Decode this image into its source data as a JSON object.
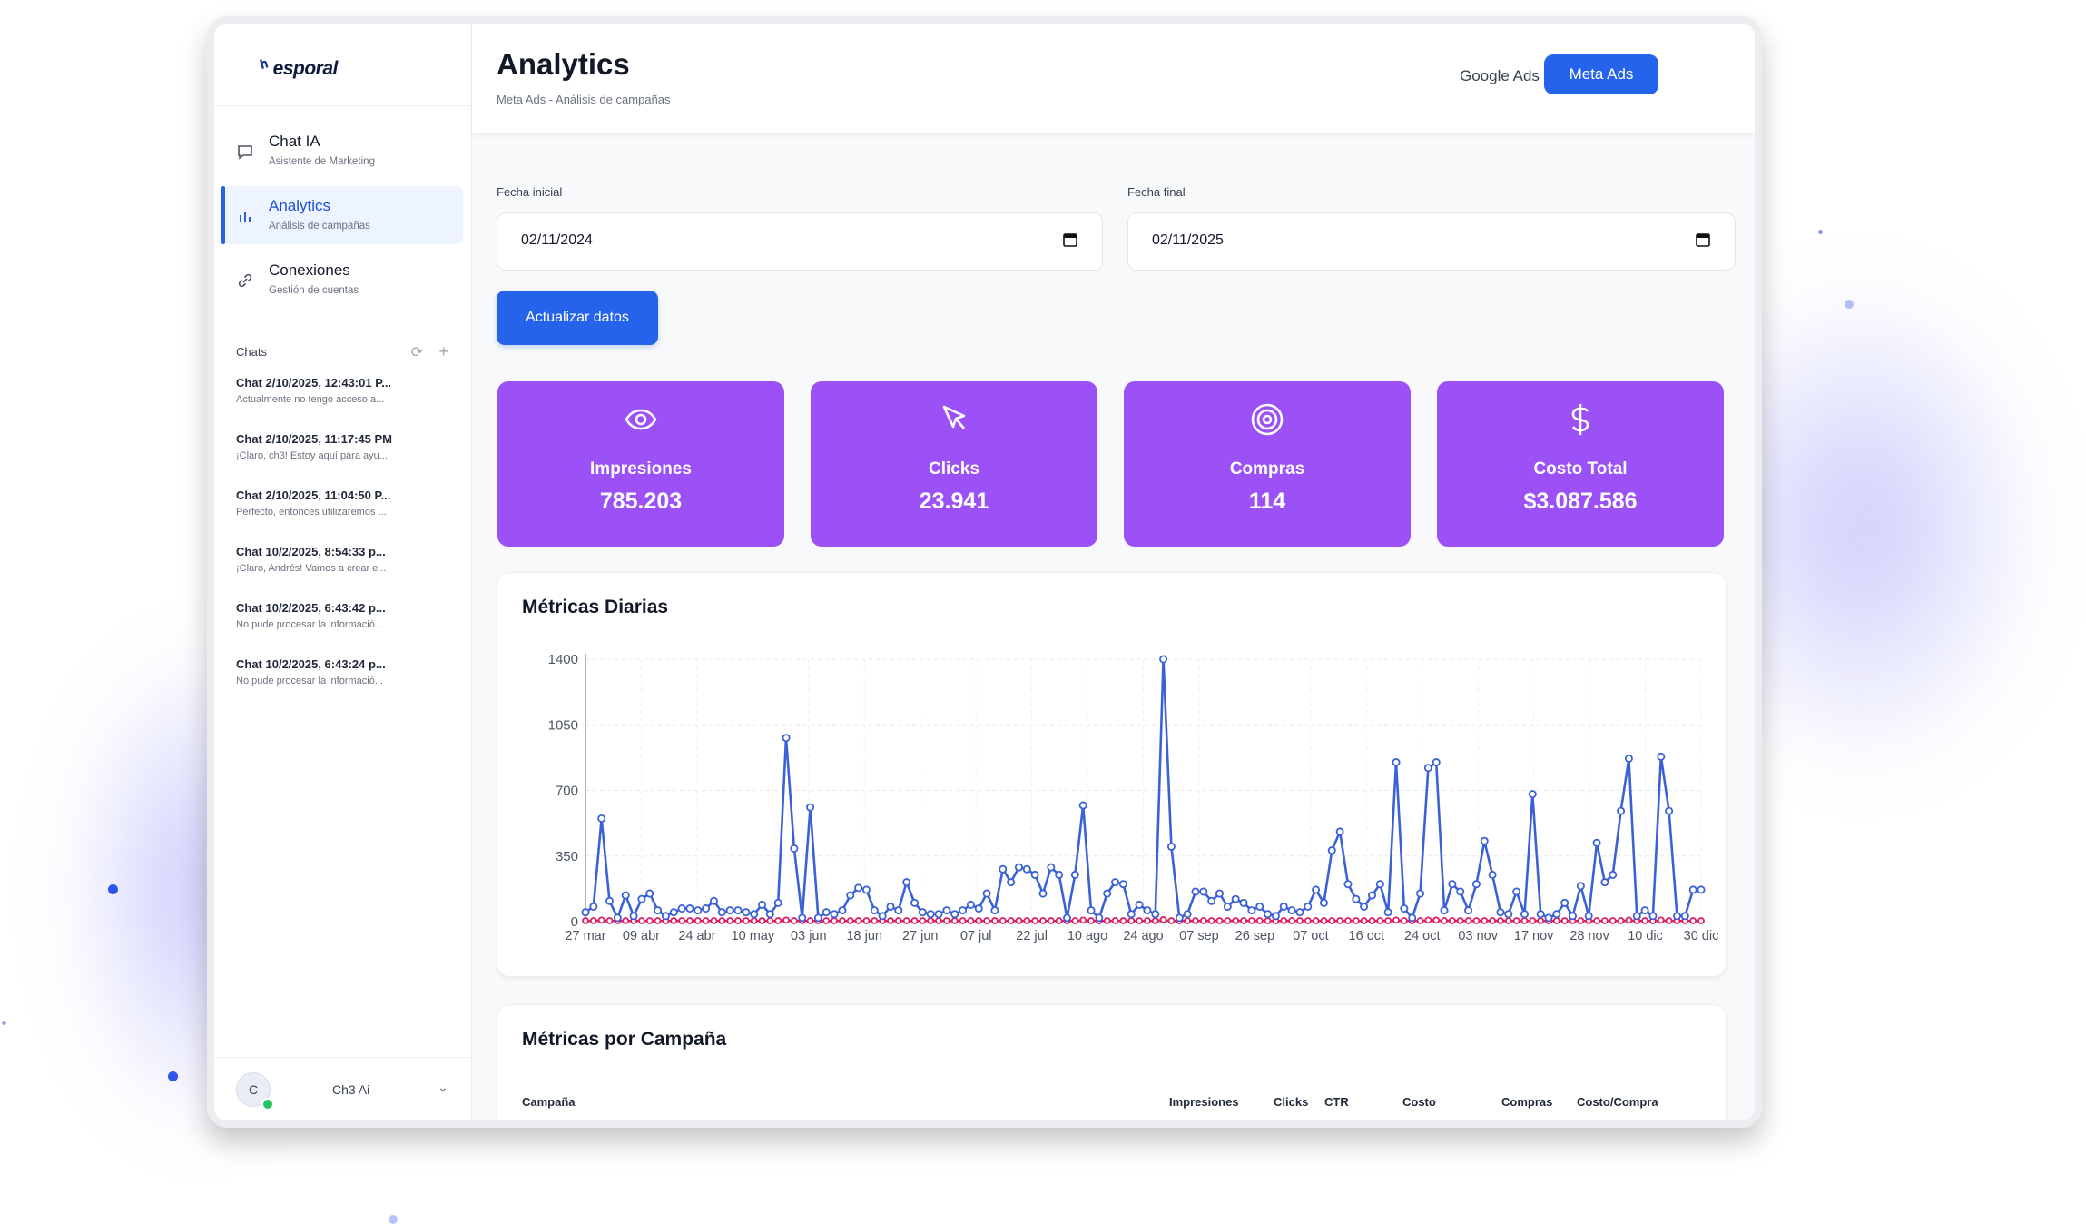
{
  "brand": {
    "name": "esporal"
  },
  "nav": {
    "items": [
      {
        "label": "Chat IA",
        "sub": "Asistente de Marketing"
      },
      {
        "label": "Analytics",
        "sub": "Análisis de campañas"
      },
      {
        "label": "Conexiones",
        "sub": "Gestión de cuentas"
      }
    ]
  },
  "chats": {
    "title": "Chats",
    "items": [
      {
        "title": "Chat 2/10/2025, 12:43:01 P...",
        "preview": "Actualmente no tengo acceso a..."
      },
      {
        "title": "Chat 2/10/2025, 11:17:45 PM",
        "preview": "¡Claro, ch3! Estoy aquí para ayu..."
      },
      {
        "title": "Chat 2/10/2025, 11:04:50 P...",
        "preview": "Perfecto, entonces utilizaremos ..."
      },
      {
        "title": "Chat 10/2/2025, 8:54:33 p...",
        "preview": "¡Claro, Andrés! Vamos a crear e..."
      },
      {
        "title": "Chat 10/2/2025, 6:43:42 p...",
        "preview": "No pude procesar la informació..."
      },
      {
        "title": "Chat 10/2/2025, 6:43:24 p...",
        "preview": "No pude procesar la informació..."
      }
    ]
  },
  "user": {
    "initial": "C",
    "name": "Ch3 Ai"
  },
  "header": {
    "title": "Analytics",
    "breadcrumb": "Meta Ads - Análisis de campañas",
    "google_label": "Google Ads",
    "meta_label": "Meta Ads"
  },
  "filters": {
    "start_label": "Fecha inicial",
    "start_value": "02/11/2024",
    "end_label": "Fecha final",
    "end_value": "02/11/2025",
    "update_label": "Actualizar datos"
  },
  "kpis": [
    {
      "label": "Impresiones",
      "value": "785.203",
      "icon": "eye-icon"
    },
    {
      "label": "Clicks",
      "value": "23.941",
      "icon": "cursor-icon"
    },
    {
      "label": "Compras",
      "value": "114",
      "icon": "target-icon"
    },
    {
      "label": "Costo Total",
      "value": "$3.087.586",
      "icon": "dollar-icon"
    }
  ],
  "colors": {
    "accent": "#2563eb",
    "kpi": "#9b51f5",
    "series1": "#3a61d6",
    "series2": "#e11d63"
  },
  "chart_data": {
    "type": "line",
    "title": "Métricas Diarias",
    "ylim": [
      0,
      1400
    ],
    "yticks": [
      0,
      350,
      700,
      1050,
      1400
    ],
    "xtick_labels": [
      "27 mar",
      "09 abr",
      "24 abr",
      "10 may",
      "03 jun",
      "18 jun",
      "27 jun",
      "07 jul",
      "22 jul",
      "10 ago",
      "24 ago",
      "07 sep",
      "26 sep",
      "07 oct",
      "16 oct",
      "24 oct",
      "03 nov",
      "17 nov",
      "28 nov",
      "10 dic",
      "30 dic"
    ],
    "grid": true,
    "series": [
      {
        "values": [
          50,
          80,
          550,
          110,
          20,
          140,
          30,
          120,
          150,
          60,
          30,
          50,
          70,
          70,
          60,
          70,
          110,
          50,
          60,
          60,
          50,
          40,
          90,
          40,
          100,
          980,
          390,
          20,
          610,
          20,
          50,
          40,
          60,
          140,
          180,
          170,
          60,
          30,
          80,
          60,
          210,
          100,
          50,
          40,
          40,
          60,
          40,
          60,
          90,
          70,
          150,
          60,
          280,
          210,
          290,
          280,
          250,
          150,
          290,
          250,
          20,
          250,
          620,
          60,
          20,
          150,
          210,
          200,
          40,
          90,
          60,
          40,
          1400,
          400,
          20,
          40,
          160,
          160,
          110,
          150,
          80,
          120,
          100,
          60,
          80,
          40,
          30,
          80,
          60,
          50,
          80,
          170,
          100,
          380,
          480,
          200,
          120,
          80,
          140,
          200,
          50,
          850,
          70,
          20,
          150,
          820,
          850,
          60,
          200,
          160,
          60,
          200,
          430,
          250,
          50,
          40,
          160,
          40,
          680,
          40,
          20,
          40,
          100,
          30,
          190,
          30,
          420,
          210,
          250,
          590,
          870,
          30,
          60,
          30,
          880,
          590,
          30,
          30,
          170,
          170
        ]
      },
      {
        "values": [
          5,
          5,
          8,
          5,
          5,
          5,
          5,
          5,
          5,
          5,
          5,
          5,
          5,
          5,
          5,
          5,
          5,
          5,
          5,
          5,
          5,
          5,
          5,
          5,
          5,
          8,
          5,
          5,
          5,
          5,
          5,
          5,
          5,
          5,
          5,
          5,
          5,
          5,
          5,
          5,
          5,
          5,
          5,
          5,
          5,
          5,
          5,
          5,
          5,
          5,
          5,
          5,
          5,
          5,
          5,
          5,
          5,
          5,
          5,
          5,
          5,
          5,
          8,
          5,
          5,
          5,
          5,
          5,
          5,
          5,
          5,
          5,
          10,
          5,
          5,
          5,
          5,
          5,
          5,
          5,
          5,
          5,
          5,
          5,
          5,
          5,
          5,
          5,
          5,
          5,
          5,
          5,
          5,
          5,
          5,
          5,
          5,
          5,
          5,
          5,
          5,
          8,
          5,
          5,
          5,
          8,
          8,
          5,
          5,
          5,
          5,
          5,
          5,
          5,
          5,
          5,
          5,
          5,
          5,
          5,
          5,
          5,
          5,
          5,
          5,
          5,
          5,
          5,
          5,
          5,
          8,
          5,
          5,
          5,
          8,
          5,
          5,
          5,
          5,
          5
        ]
      }
    ]
  },
  "campaign_table": {
    "title": "Métricas por Campaña",
    "columns": [
      "Campaña",
      "Impresiones",
      "Clicks",
      "CTR",
      "Costo",
      "Compras",
      "Costo/Compra"
    ]
  }
}
